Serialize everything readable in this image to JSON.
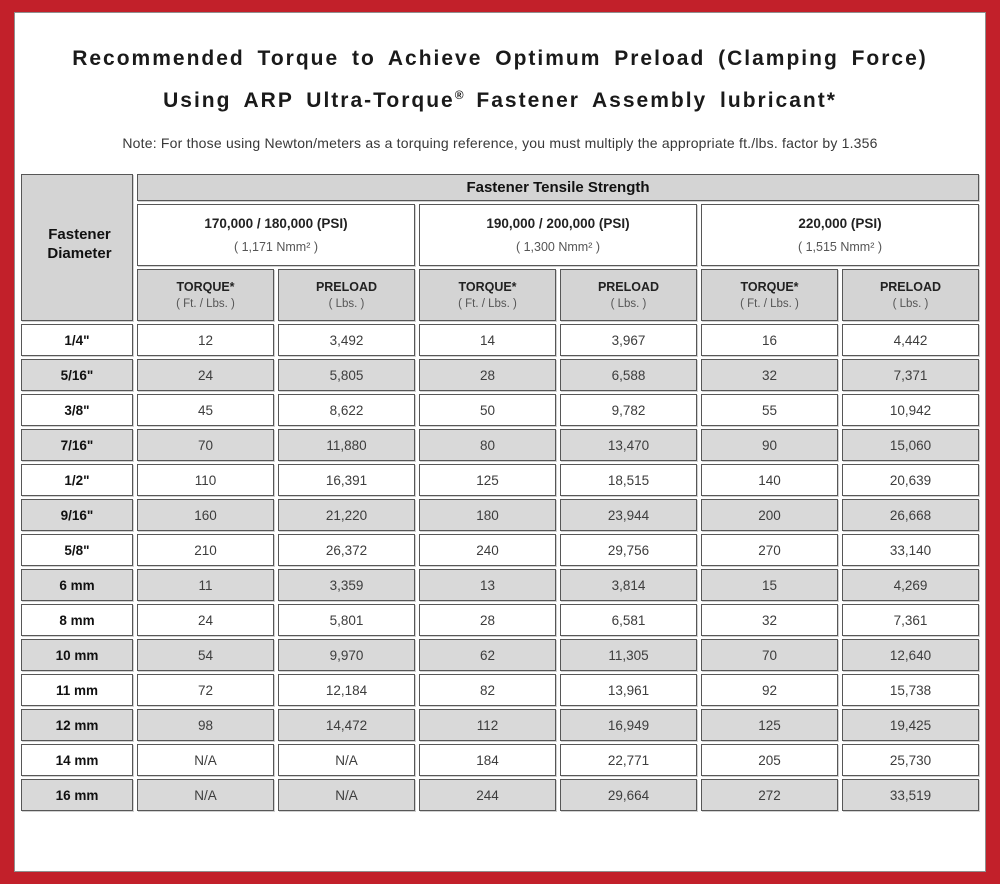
{
  "colors": {
    "border_red": "#C2202A",
    "header_gray": "#D4D4D4",
    "row_shade_gray": "#D9D9D9",
    "cell_border": "#575757"
  },
  "title": {
    "line1": "Recommended Torque to Achieve Optimum Preload (Clamping Force)",
    "line2_before_reg": "Using ARP Ultra-Torque",
    "registered_mark": "®",
    "line2_after_reg": " Fastener Assembly lubricant*",
    "note": "Note: For those using Newton/meters as a torquing reference, you must multiply the appropriate ft./lbs. factor by 1.356"
  },
  "table": {
    "corner_label": "Fastener Diameter",
    "top_header": "Fastener Tensile Strength",
    "groups": [
      {
        "psi": "170,000 / 180,000 (PSI)",
        "nmm": "( 1,171 Nmm² )"
      },
      {
        "psi": "190,000 / 200,000 (PSI)",
        "nmm": "( 1,300 Nmm² )"
      },
      {
        "psi": "220,000 (PSI)",
        "nmm": "( 1,515 Nmm² )"
      }
    ],
    "col_headers": {
      "torque_label": "TORQUE*",
      "torque_sub": "( Ft. / Lbs. )",
      "preload_label": "PRELOAD",
      "preload_sub": "( Lbs. )"
    },
    "rows": [
      {
        "dia": "1/4\"",
        "values": [
          "12",
          "3,492",
          "14",
          "3,967",
          "16",
          "4,442"
        ]
      },
      {
        "dia": "5/16\"",
        "values": [
          "24",
          "5,805",
          "28",
          "6,588",
          "32",
          "7,371"
        ]
      },
      {
        "dia": "3/8\"",
        "values": [
          "45",
          "8,622",
          "50",
          "9,782",
          "55",
          "10,942"
        ]
      },
      {
        "dia": "7/16\"",
        "values": [
          "70",
          "11,880",
          "80",
          "13,470",
          "90",
          "15,060"
        ]
      },
      {
        "dia": "1/2\"",
        "values": [
          "110",
          "16,391",
          "125",
          "18,515",
          "140",
          "20,639"
        ]
      },
      {
        "dia": "9/16\"",
        "values": [
          "160",
          "21,220",
          "180",
          "23,944",
          "200",
          "26,668"
        ]
      },
      {
        "dia": "5/8\"",
        "values": [
          "210",
          "26,372",
          "240",
          "29,756",
          "270",
          "33,140"
        ]
      },
      {
        "dia": "6 mm",
        "values": [
          "11",
          "3,359",
          "13",
          "3,814",
          "15",
          "4,269"
        ]
      },
      {
        "dia": "8 mm",
        "values": [
          "24",
          "5,801",
          "28",
          "6,581",
          "32",
          "7,361"
        ]
      },
      {
        "dia": "10 mm",
        "values": [
          "54",
          "9,970",
          "62",
          "11,305",
          "70",
          "12,640"
        ]
      },
      {
        "dia": "11 mm",
        "values": [
          "72",
          "12,184",
          "82",
          "13,961",
          "92",
          "15,738"
        ]
      },
      {
        "dia": "12 mm",
        "values": [
          "98",
          "14,472",
          "112",
          "16,949",
          "125",
          "19,425"
        ]
      },
      {
        "dia": "14 mm",
        "values": [
          "N/A",
          "N/A",
          "184",
          "22,771",
          "205",
          "25,730"
        ]
      },
      {
        "dia": "16 mm",
        "values": [
          "N/A",
          "N/A",
          "244",
          "29,664",
          "272",
          "33,519"
        ]
      }
    ]
  }
}
